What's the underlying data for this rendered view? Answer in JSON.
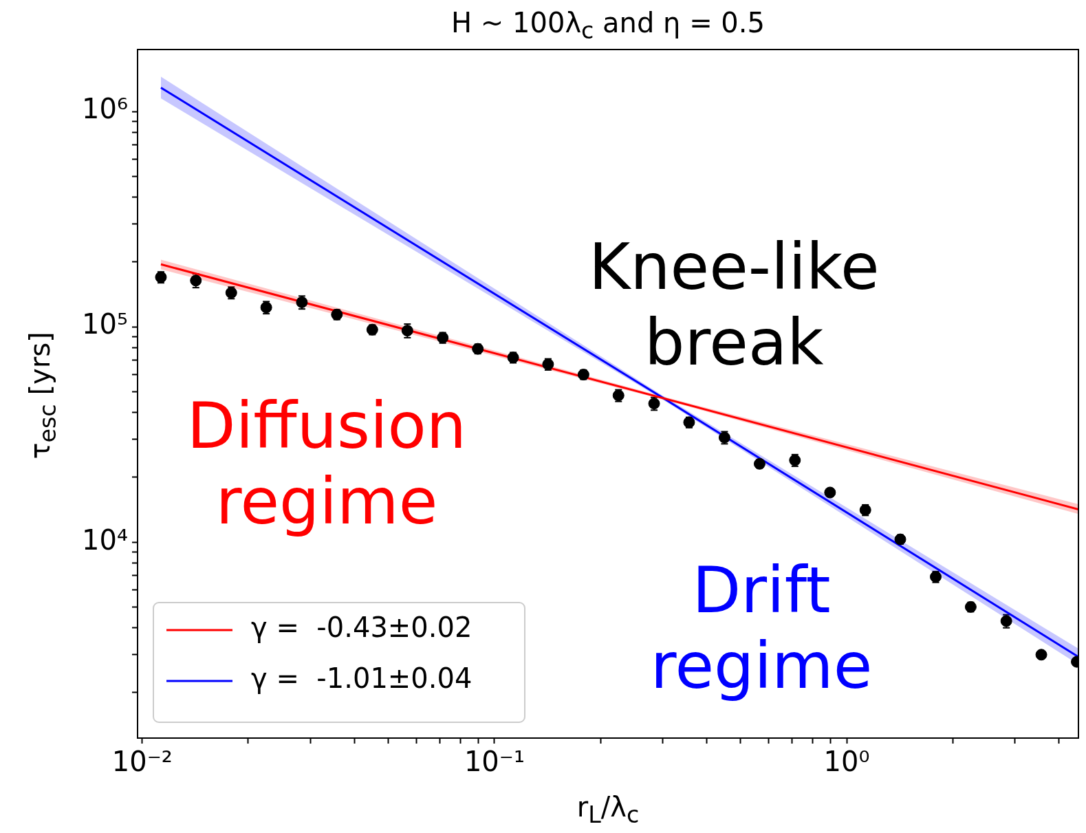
{
  "chart_data": {
    "type": "scatter",
    "title": "H ~ 100λ$_{c}$ and η =  0.5",
    "xlabel": "r$_{L}$/λ$_{c}$",
    "ylabel": "τ$_{esc}$ [yrs]",
    "log": "xy",
    "legend": "bottom left",
    "xlim": [
      0.0097,
      4.55
    ],
    "ylim": [
      1230,
      1940000
    ],
    "xticks": [
      {
        "value": 0.01,
        "label": "10⁻²"
      },
      {
        "value": 0.02,
        "label": null
      },
      {
        "value": 0.03,
        "label": null
      },
      {
        "value": 0.04,
        "label": null
      },
      {
        "value": 0.05,
        "label": null
      },
      {
        "value": 0.06,
        "label": null
      },
      {
        "value": 0.07,
        "label": null
      },
      {
        "value": 0.08,
        "label": null
      },
      {
        "value": 0.09,
        "label": null
      },
      {
        "value": 0.1,
        "label": "10⁻¹"
      },
      {
        "value": 0.2,
        "label": null
      },
      {
        "value": 0.3,
        "label": null
      },
      {
        "value": 0.4,
        "label": null
      },
      {
        "value": 0.5,
        "label": null
      },
      {
        "value": 0.6,
        "label": null
      },
      {
        "value": 0.7,
        "label": null
      },
      {
        "value": 0.8,
        "label": null
      },
      {
        "value": 0.9,
        "label": null
      },
      {
        "value": 1,
        "label": "10⁰"
      },
      {
        "value": 2,
        "label": null
      },
      {
        "value": 3,
        "label": null
      },
      {
        "value": 4,
        "label": null
      }
    ],
    "yticks": [
      {
        "value": 2000,
        "label": null
      },
      {
        "value": 3000,
        "label": null
      },
      {
        "value": 4000,
        "label": null
      },
      {
        "value": 5000,
        "label": null
      },
      {
        "value": 6000,
        "label": null
      },
      {
        "value": 7000,
        "label": null
      },
      {
        "value": 8000,
        "label": null
      },
      {
        "value": 9000,
        "label": null
      },
      {
        "value": 10000,
        "label": "10⁴"
      },
      {
        "value": 20000,
        "label": null
      },
      {
        "value": 30000,
        "label": null
      },
      {
        "value": 40000,
        "label": null
      },
      {
        "value": 50000,
        "label": null
      },
      {
        "value": 60000,
        "label": null
      },
      {
        "value": 70000,
        "label": null
      },
      {
        "value": 80000,
        "label": null
      },
      {
        "value": 90000,
        "label": null
      },
      {
        "value": 100000,
        "label": "10⁵"
      },
      {
        "value": 200000,
        "label": null
      },
      {
        "value": 300000,
        "label": null
      },
      {
        "value": 400000,
        "label": null
      },
      {
        "value": 500000,
        "label": null
      },
      {
        "value": 600000,
        "label": null
      },
      {
        "value": 700000,
        "label": null
      },
      {
        "value": 800000,
        "label": null
      },
      {
        "value": 900000,
        "label": null
      },
      {
        "value": 1000000,
        "label": "10⁶"
      }
    ],
    "annotations": [
      "Knee-like break",
      "Diffusion regime",
      "Drift regime"
    ],
    "series": [
      {
        "type": "scatter",
        "marker": "circle",
        "color": "#000000",
        "x": [
          0.0113,
          0.0142,
          0.0179,
          0.0225,
          0.0284,
          0.0357,
          0.045,
          0.0566,
          0.0713,
          0.0897,
          0.113,
          0.142,
          0.179,
          0.225,
          0.284,
          0.357,
          0.45,
          0.566,
          0.713,
          0.897,
          1.13,
          1.42,
          1.79,
          2.25,
          2.84,
          3.57,
          4.5
        ],
        "values": [
          170000,
          164000,
          144000,
          123000,
          130000,
          114000,
          97000,
          96000,
          89000,
          79000,
          72000,
          67000,
          60000,
          48000,
          44000,
          36000,
          30600,
          23100,
          24000,
          17000,
          14100,
          10300,
          6900,
          5000,
          4300,
          3000,
          2780
        ],
        "errors": [
          10000,
          12000,
          9000,
          8000,
          9000,
          6000,
          5000,
          7000,
          5000,
          4000,
          4000,
          4000,
          3000,
          3000,
          3000,
          2000,
          2000,
          1000,
          1500,
          700,
          800,
          500,
          400,
          250,
          300,
          null,
          null
        ]
      },
      {
        "type": "line",
        "name": "γ =  -0.43±0.02",
        "color": "#ff0000",
        "x": [
          0.0113,
          0.3,
          4.55
        ],
        "values": [
          195000,
          46700,
          14200
        ],
        "lower": [
          185000,
          46000,
          13500
        ],
        "upper": [
          205000,
          47500,
          15000
        ]
      },
      {
        "type": "line",
        "name": "γ =  -1.01±0.04",
        "color": "#0000ff",
        "x": [
          0.0113,
          0.3,
          4.55
        ],
        "values": [
          1290000,
          46900,
          2930
        ],
        "lower": [
          1150000,
          46000,
          2700
        ],
        "upper": [
          1450000,
          48000,
          3200
        ]
      }
    ]
  }
}
